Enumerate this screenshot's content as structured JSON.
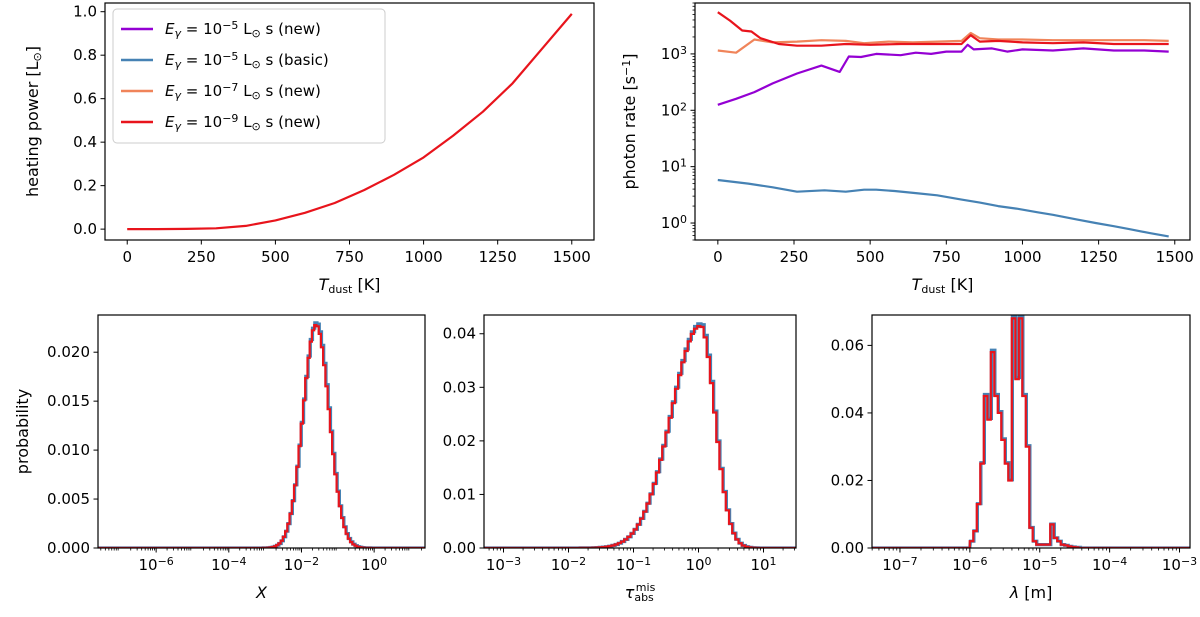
{
  "colors": {
    "purple": "#9400d3",
    "blue": "#4682b4",
    "orange": "#f0845a",
    "red": "#e8141c"
  },
  "legend": {
    "placement": "upper-left",
    "entries": [
      {
        "base": "E",
        "sub": "γ",
        "eq": " = 10",
        "sup": "−5",
        "unit": " L",
        "sun": "⊙",
        "tail": " s (new)",
        "color": "#9400d3"
      },
      {
        "base": "E",
        "sub": "γ",
        "eq": " = 10",
        "sup": "−5",
        "unit": " L",
        "sun": "⊙",
        "tail": " s (basic)",
        "color": "#4682b4"
      },
      {
        "base": "E",
        "sub": "γ",
        "eq": " = 10",
        "sup": "−7",
        "unit": " L",
        "sun": "⊙",
        "tail": " s (new)",
        "color": "#f0845a"
      },
      {
        "base": "E",
        "sub": "γ",
        "eq": " = 10",
        "sup": "−9",
        "unit": " L",
        "sun": "⊙",
        "tail": " s (new)",
        "color": "#e8141c"
      }
    ]
  },
  "chart_data": [
    {
      "id": "heating",
      "type": "line",
      "scale": "linear",
      "xlabel": {
        "base": "T",
        "sub": "dust",
        "tail": " [K]"
      },
      "ylabel": {
        "text": "heating power [L",
        "sun": "⊙",
        "close": "]"
      },
      "xlim": [
        -75,
        1575
      ],
      "ylim": [
        -0.05,
        1.04
      ],
      "xticks": [
        0,
        250,
        500,
        750,
        1000,
        1250,
        1500
      ],
      "xtick_labels": [
        "0",
        "250",
        "500",
        "750",
        "1000",
        "1250",
        "1500"
      ],
      "yticks": [
        0.0,
        0.2,
        0.4,
        0.6,
        0.8,
        1.0
      ],
      "ytick_labels": [
        "0.0",
        "0.2",
        "0.4",
        "0.6",
        "0.8",
        "1.0"
      ],
      "x": [
        0,
        100,
        200,
        300,
        400,
        500,
        600,
        700,
        800,
        900,
        1000,
        1100,
        1200,
        1300,
        1400,
        1500
      ],
      "series": [
        {
          "color": "#e8141c",
          "values": [
            0,
            0.0002,
            0.001,
            0.004,
            0.015,
            0.04,
            0.075,
            0.12,
            0.18,
            0.25,
            0.33,
            0.43,
            0.54,
            0.67,
            0.83,
            0.99
          ]
        }
      ]
    },
    {
      "id": "rate",
      "type": "line",
      "scale": "log",
      "xlabel": {
        "base": "T",
        "sub": "dust",
        "tail": " [K]"
      },
      "ylabel": {
        "text": "photon rate [s",
        "sup": "−1",
        "close": "]"
      },
      "xlim": [
        -75,
        1550
      ],
      "ylim": [
        0.5,
        8000
      ],
      "xticks": [
        0,
        250,
        500,
        750,
        1000,
        1250,
        1500
      ],
      "xtick_labels": [
        "0",
        "250",
        "500",
        "750",
        "1000",
        "1250",
        "1500"
      ],
      "yticks": [
        1,
        10,
        100,
        1000
      ],
      "ytick_labels": [
        {
          "base": "10",
          "sup": "0"
        },
        {
          "base": "10",
          "sup": "1"
        },
        {
          "base": "10",
          "sup": "2"
        },
        {
          "base": "10",
          "sup": "3"
        }
      ],
      "series": [
        {
          "color": "#4682b4",
          "x": [
            0,
            100,
            180,
            260,
            350,
            420,
            480,
            520,
            580,
            650,
            720,
            800,
            860,
            920,
            980,
            1050,
            1100,
            1180,
            1240,
            1300,
            1350,
            1420,
            1480
          ],
          "values": [
            5.8,
            5.0,
            4.3,
            3.6,
            3.8,
            3.6,
            3.9,
            3.9,
            3.7,
            3.4,
            3.1,
            2.6,
            2.3,
            2.0,
            1.8,
            1.55,
            1.4,
            1.15,
            1.0,
            0.88,
            0.78,
            0.66,
            0.58
          ]
        },
        {
          "color": "#9400d3",
          "x": [
            0,
            60,
            120,
            180,
            260,
            340,
            400,
            430,
            470,
            520,
            600,
            650,
            700,
            750,
            800,
            820,
            840,
            900,
            950,
            1000,
            1100,
            1200,
            1300,
            1400,
            1480
          ],
          "values": [
            125,
            160,
            210,
            300,
            450,
            620,
            480,
            900,
            880,
            1000,
            950,
            1050,
            1000,
            1100,
            1100,
            1450,
            1200,
            1250,
            1100,
            1200,
            1150,
            1250,
            1150,
            1150,
            1100
          ]
        },
        {
          "color": "#f0845a",
          "x": [
            0,
            60,
            120,
            180,
            260,
            340,
            420,
            480,
            560,
            640,
            720,
            800,
            830,
            860,
            920,
            1000,
            1100,
            1200,
            1300,
            1400,
            1480
          ],
          "values": [
            1150,
            1050,
            1800,
            1600,
            1650,
            1750,
            1700,
            1550,
            1650,
            1600,
            1650,
            1700,
            2350,
            1900,
            1800,
            1800,
            1750,
            1750,
            1750,
            1750,
            1700
          ]
        },
        {
          "color": "#e8141c",
          "x": [
            0,
            40,
            80,
            110,
            140,
            200,
            260,
            340,
            420,
            500,
            600,
            700,
            800,
            830,
            860,
            920,
            1000,
            1100,
            1200,
            1300,
            1400,
            1480
          ],
          "values": [
            5500,
            3900,
            2600,
            2500,
            1900,
            1500,
            1400,
            1400,
            1500,
            1450,
            1500,
            1500,
            1500,
            2150,
            1650,
            1700,
            1600,
            1550,
            1600,
            1500,
            1500,
            1500
          ]
        }
      ]
    },
    {
      "id": "x_hist",
      "type": "histogram",
      "scale": "logx",
      "xlabel": {
        "italic": "X"
      },
      "ylabel": {
        "text": "probability"
      },
      "xlim": [
        -7.6,
        1.4
      ],
      "ylim": [
        0,
        0.0238
      ],
      "xticks": [
        -6,
        -4,
        -2,
        0
      ],
      "xtick_labels": [
        {
          "base": "10",
          "sup": "−6"
        },
        {
          "base": "10",
          "sup": "−4"
        },
        {
          "base": "10",
          "sup": "−2"
        },
        {
          "base": "10",
          "sup": "0"
        }
      ],
      "yticks": [
        0,
        0.005,
        0.01,
        0.015,
        0.02
      ],
      "ytick_labels": [
        "0.000",
        "0.005",
        "0.010",
        "0.015",
        "0.020"
      ],
      "dist": {
        "kind": "gauss",
        "mu": -1.6,
        "sigma": 0.36,
        "peak": 0.0228,
        "from": -3.5,
        "to": 0.2,
        "bins": 60
      },
      "series": [
        {
          "color": "#4682b4"
        },
        {
          "color": "#e8141c"
        }
      ]
    },
    {
      "id": "tau_hist",
      "type": "histogram",
      "scale": "logx",
      "xlabel": {
        "italic": "τ",
        "sub": "abs",
        "sup": "mis"
      },
      "ylabel": {
        "text": ""
      },
      "xlim": [
        -3.3,
        1.5
      ],
      "ylim": [
        0,
        0.0435
      ],
      "xticks": [
        -3,
        -2,
        -1,
        0,
        1
      ],
      "xtick_labels": [
        {
          "base": "10",
          "sup": "−3"
        },
        {
          "base": "10",
          "sup": "−2"
        },
        {
          "base": "10",
          "sup": "−1"
        },
        {
          "base": "10",
          "sup": "0"
        },
        {
          "base": "10",
          "sup": "1"
        }
      ],
      "yticks": [
        0,
        0.01,
        0.02,
        0.03,
        0.04
      ],
      "ytick_labels": [
        "0.00",
        "0.01",
        "0.02",
        "0.03",
        "0.04"
      ],
      "dist": {
        "kind": "skew",
        "mu": 0.03,
        "sigmaL": 0.45,
        "sigmaR": 0.22,
        "peak": 0.0415,
        "from": -3.1,
        "to": 1.3,
        "bins": 90
      },
      "series": [
        {
          "color": "#4682b4"
        },
        {
          "color": "#e8141c"
        }
      ]
    },
    {
      "id": "lambda_hist",
      "type": "histogram",
      "scale": "logx",
      "xlabel": {
        "italic": "λ",
        "tail": " [m]"
      },
      "ylabel": {
        "text": ""
      },
      "xlim": [
        -7.4,
        -2.85
      ],
      "ylim": [
        0,
        0.069
      ],
      "xticks": [
        -7,
        -6,
        -5,
        -4,
        -3
      ],
      "xtick_labels": [
        {
          "base": "10",
          "sup": "−7"
        },
        {
          "base": "10",
          "sup": "−6"
        },
        {
          "base": "10",
          "sup": "−5"
        },
        {
          "base": "10",
          "sup": "−4"
        },
        {
          "base": "10",
          "sup": "−3"
        }
      ],
      "yticks": [
        0,
        0.02,
        0.04,
        0.06
      ],
      "ytick_labels": [
        "0.00",
        "0.02",
        "0.04",
        "0.06"
      ],
      "bins_x": [
        -6.0,
        -5.95,
        -5.9,
        -5.85,
        -5.8,
        -5.75,
        -5.7,
        -5.65,
        -5.6,
        -5.55,
        -5.5,
        -5.45,
        -5.4,
        -5.35,
        -5.3,
        -5.25,
        -5.2,
        -5.15,
        -5.1,
        -5.05,
        -5.0,
        -4.95,
        -4.9,
        -4.85,
        -4.8,
        -4.75,
        -4.7,
        -4.65,
        -4.6,
        -4.55,
        -4.5
      ],
      "bins_y": [
        0.002,
        0.005,
        0.013,
        0.025,
        0.045,
        0.038,
        0.058,
        0.045,
        0.04,
        0.032,
        0.025,
        0.02,
        0.068,
        0.05,
        0.068,
        0.045,
        0.03,
        0.006,
        0.002,
        0.001,
        0.001,
        0.001,
        0.001,
        0.007,
        0.003,
        0.002,
        0.001,
        0.0008,
        0.0005,
        0.0003,
        0.0002
      ],
      "series": [
        {
          "color": "#4682b4"
        },
        {
          "color": "#e8141c"
        }
      ]
    }
  ]
}
